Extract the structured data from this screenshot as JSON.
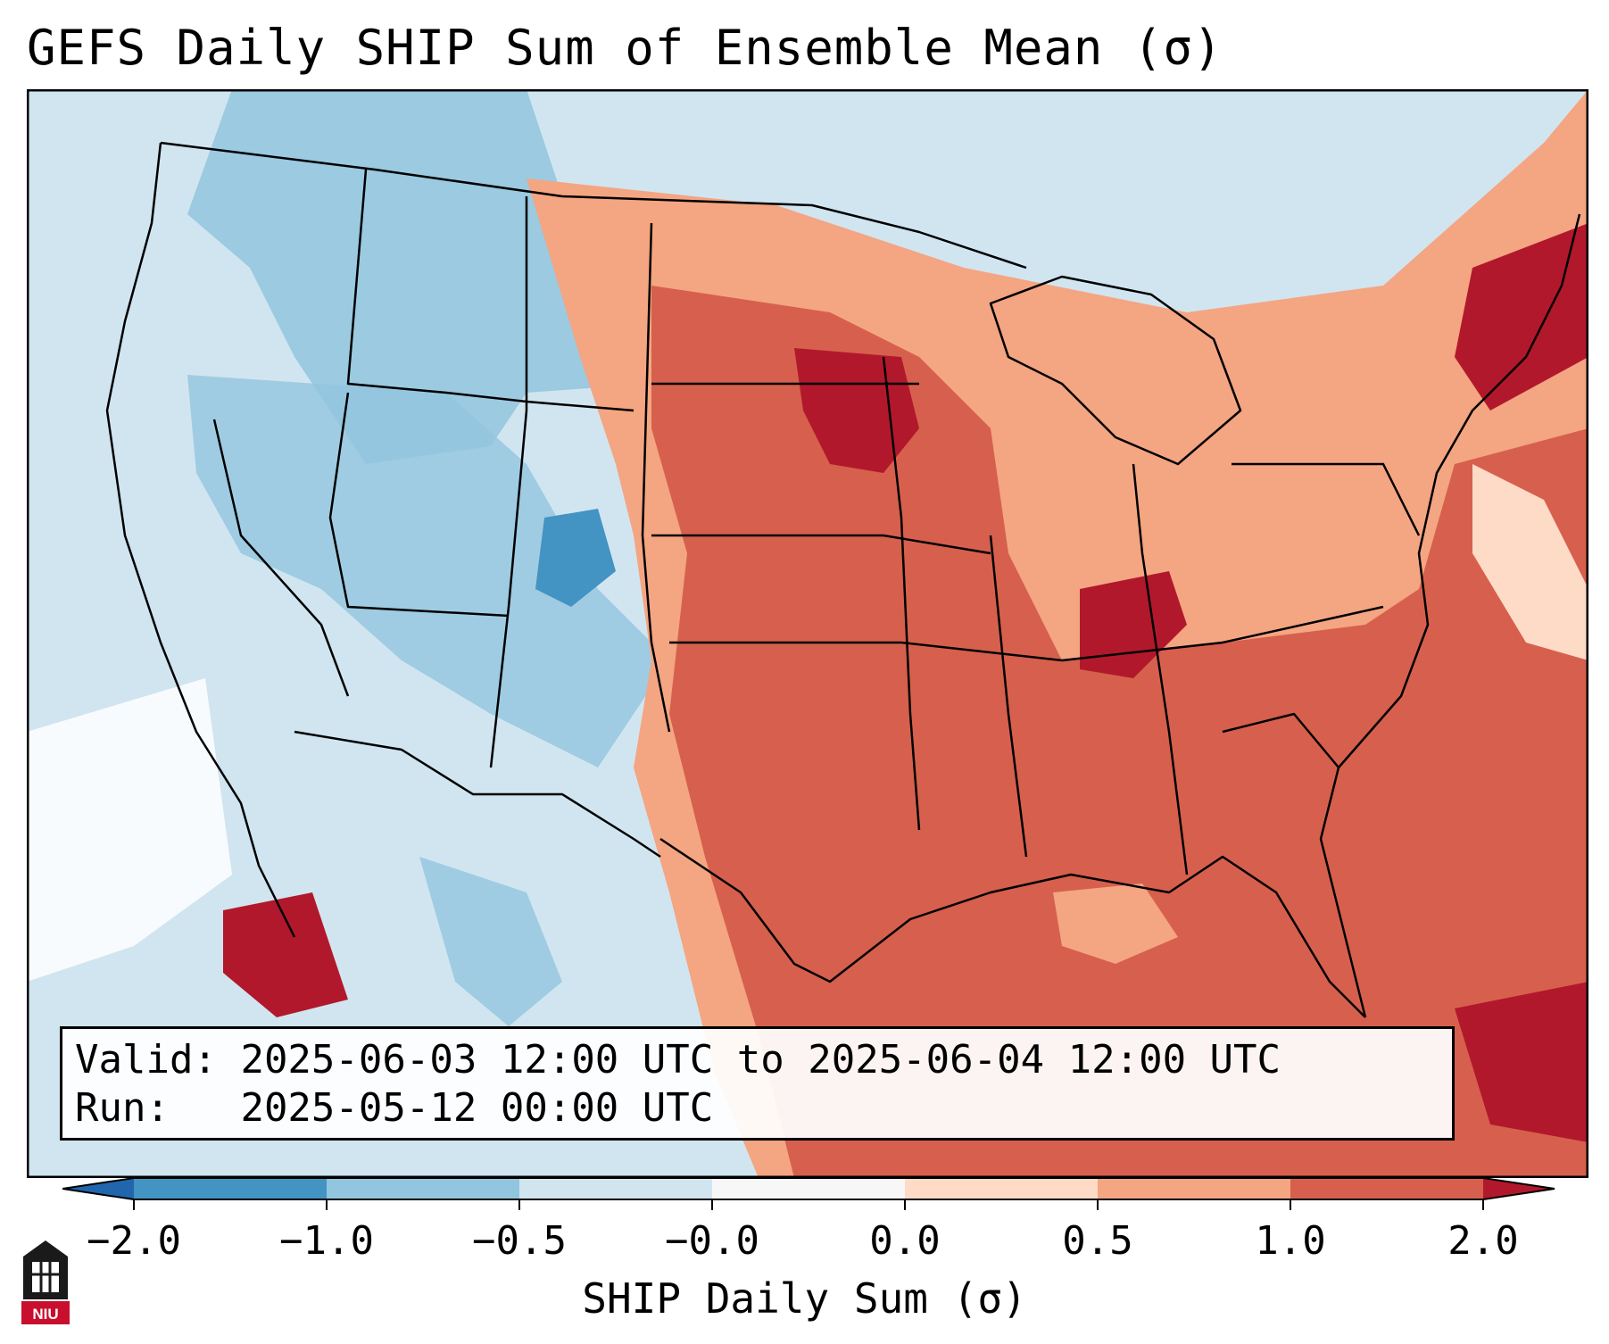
{
  "title": "GEFS Daily SHIP Sum of Ensemble Mean (σ)",
  "info": {
    "valid_label": "Valid:",
    "valid_value": "2025-06-03 12:00 UTC to 2025-06-04 12:00 UTC",
    "run_label": "Run:",
    "run_value": "2025-05-12 00:00 UTC"
  },
  "colorbar": {
    "label": "SHIP Daily Sum (σ)",
    "ticks": [
      "−2.0",
      "−1.0",
      "−0.5",
      "−0.0",
      "0.0",
      "0.5",
      "1.0",
      "2.0"
    ],
    "colors": [
      "#2166ac",
      "#4393c3",
      "#92c5de",
      "#d1e5f0",
      "#f7f7f7",
      "#fddbc7",
      "#f4a582",
      "#d6604d",
      "#b2182b"
    ]
  },
  "logo": {
    "text": "NIU"
  }
}
